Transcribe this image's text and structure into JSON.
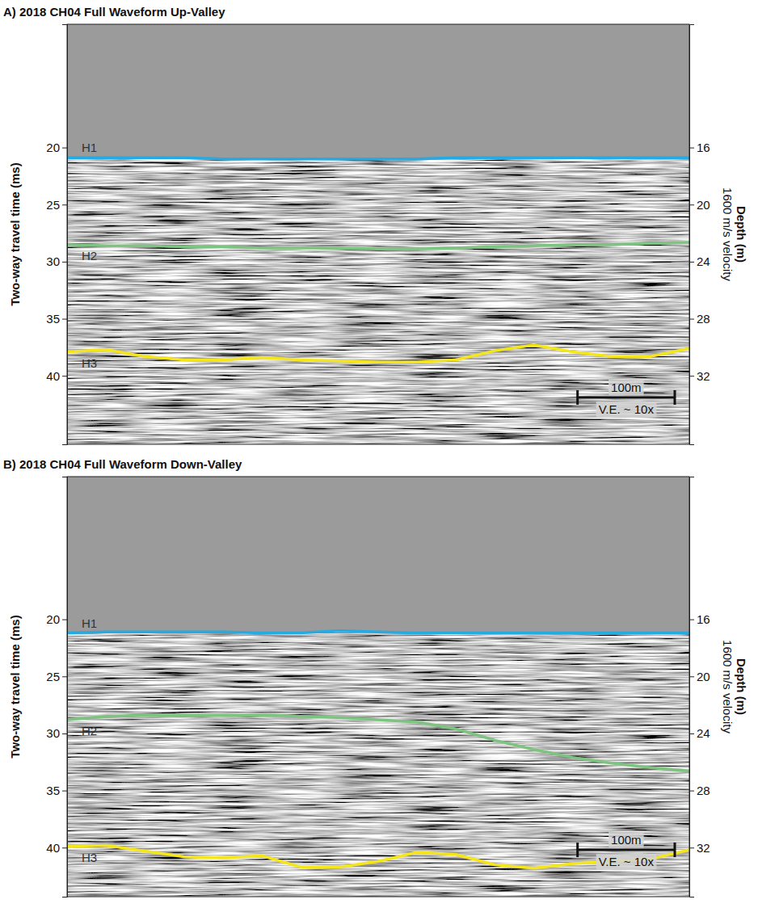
{
  "chart_data": [
    {
      "type": "line",
      "title": "A) 2018 CH04 Full Waveform Up-Valley",
      "y_label": "Two-way travel time (ms)",
      "y2_label": [
        "Depth (m)",
        "1600 m/s velocity"
      ],
      "x": [
        0,
        40,
        80,
        120,
        160,
        200,
        240,
        280,
        320,
        360,
        400,
        440,
        480,
        520,
        560,
        600,
        640
      ],
      "xlim": [
        0,
        640
      ],
      "ylim": [
        9.2,
        46
      ],
      "yticks": [
        20,
        25,
        30,
        35,
        40
      ],
      "y2lim": [
        7.36,
        36.8
      ],
      "y2ticks": [
        16,
        20,
        24,
        28,
        32
      ],
      "tick_labels": "y",
      "series": [
        {
          "name": "H1",
          "color": "#27a9e1",
          "values": [
            20.9,
            20.9,
            20.9,
            20.9,
            21.0,
            21.0,
            21.0,
            21.0,
            21.0,
            21.0,
            20.9,
            20.9,
            20.9,
            20.9,
            20.9,
            20.9,
            20.9
          ]
        },
        {
          "name": "H2",
          "color": "#7cc47f",
          "values": [
            28.5,
            28.6,
            28.6,
            28.7,
            28.7,
            28.8,
            28.8,
            28.8,
            28.9,
            28.9,
            28.8,
            28.7,
            28.6,
            28.5,
            28.5,
            28.4,
            28.3
          ]
        },
        {
          "name": "H3",
          "color": "#f5e61c",
          "values": [
            37.9,
            37.7,
            38.3,
            38.6,
            38.6,
            38.4,
            38.6,
            38.7,
            38.8,
            38.8,
            38.6,
            37.8,
            37.3,
            37.9,
            38.3,
            38.3,
            37.6
          ]
        }
      ],
      "scale_bar": {
        "length": 100,
        "label": "100m",
        "note": "V.E. ~ 10x"
      }
    },
    {
      "type": "line",
      "title": "B) 2018 CH04 Full Waveform Down-Valley",
      "y_label": "Two-way travel time (ms)",
      "y2_label": [
        "Depth (m)",
        "1600 m/s velocity"
      ],
      "x": [
        0,
        40,
        80,
        120,
        160,
        200,
        240,
        280,
        320,
        360,
        400,
        440,
        480,
        520,
        560,
        600,
        640
      ],
      "xlim": [
        0,
        640
      ],
      "ylim": [
        7.5,
        44.3
      ],
      "yticks": [
        20,
        25,
        30,
        35,
        40
      ],
      "y2lim": [
        6,
        35.44
      ],
      "y2ticks": [
        16,
        20,
        24,
        28,
        32
      ],
      "tick_labels": "y",
      "series": [
        {
          "name": "H1",
          "color": "#27a9e1",
          "values": [
            21.2,
            21.1,
            21.1,
            21.1,
            21.1,
            21.2,
            21.2,
            21.0,
            21.1,
            21.2,
            21.2,
            21.2,
            21.2,
            21.2,
            21.2,
            21.2,
            21.2
          ]
        },
        {
          "name": "H2",
          "color": "#7cc47f",
          "values": [
            28.8,
            28.5,
            28.4,
            28.4,
            28.4,
            28.4,
            28.5,
            28.6,
            28.8,
            29.0,
            29.6,
            30.6,
            31.4,
            32.1,
            32.6,
            33.0,
            33.3
          ]
        },
        {
          "name": "H3",
          "color": "#f5e61c",
          "values": [
            39.9,
            39.8,
            40.3,
            40.8,
            40.9,
            40.7,
            41.7,
            41.7,
            41.2,
            40.4,
            40.6,
            41.5,
            41.8,
            41.4,
            41.2,
            41.0,
            40.2
          ]
        }
      ],
      "scale_bar": {
        "length": 100,
        "label": "100m",
        "note": "V.E. ~ 10x"
      }
    }
  ]
}
